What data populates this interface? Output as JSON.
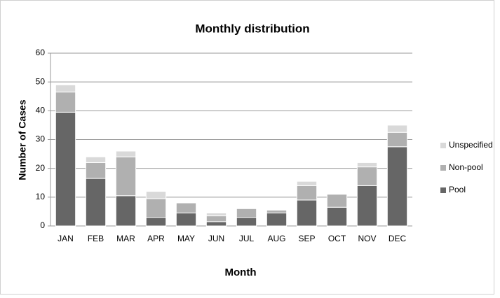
{
  "chart_data": {
    "type": "stacked_bar",
    "title": "Monthly distribution",
    "x_label": "Month",
    "y_label": "Number of Cases",
    "categories": [
      "JAN",
      "FEB",
      "MAR",
      "APR",
      "MAY",
      "JUN",
      "JUL",
      "AUG",
      "SEP",
      "OCT",
      "NOV",
      "DEC"
    ],
    "series": [
      {
        "name": "Pool",
        "color": "#666666",
        "values": [
          39.5,
          16.5,
          10.5,
          3,
          4.5,
          1.5,
          3,
          4.5,
          9,
          6.5,
          14,
          27.5
        ]
      },
      {
        "name": "Non-pool",
        "color": "#b0b0b0",
        "values": [
          7,
          5.5,
          13.5,
          6.5,
          3.5,
          2,
          3,
          1,
          5,
          4.5,
          6.5,
          5
        ]
      },
      {
        "name": "Unspecified",
        "color": "#d9d9d9",
        "values": [
          2.5,
          2,
          2,
          2.5,
          0,
          1,
          0,
          0,
          1.5,
          0,
          1.5,
          2.5
        ]
      }
    ],
    "ylim": [
      0,
      60
    ],
    "yticks": [
      0,
      10,
      20,
      30,
      40,
      50,
      60
    ],
    "grid": true,
    "legend": "right"
  }
}
